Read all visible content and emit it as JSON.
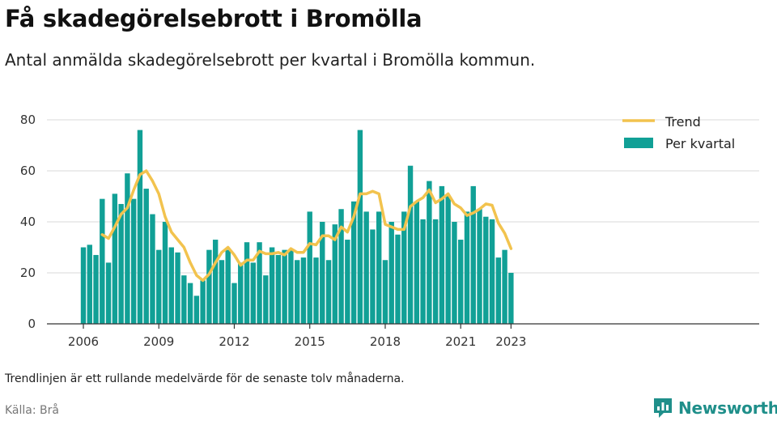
{
  "header": {
    "title": "Få skadegörelsebrott i Bromölla",
    "subtitle": "Antal anmälda skadegörelsebrott per kvartal i Bromölla kommun."
  },
  "footer": {
    "note": "Trendlinjen är ett rullande medelvärde för de senaste tolv månaderna.",
    "source": "Källa: Brå",
    "brand": "Newsworthy"
  },
  "colors": {
    "bar": "#11a096",
    "trend": "#f2c34e",
    "grid": "#d9d9d9",
    "brand": "#1f8f8a"
  },
  "chart_data": {
    "type": "bar",
    "title": "",
    "xlabel": "",
    "ylabel": "",
    "ylim": [
      0,
      80
    ],
    "yticks": [
      0,
      20,
      40,
      60,
      80
    ],
    "xticks": [
      "2006",
      "2009",
      "2012",
      "2015",
      "2018",
      "2021",
      "2023"
    ],
    "grid": true,
    "legend_position": "top-right",
    "legend": [
      "Trend",
      "Per kvartal"
    ],
    "categories": [
      "2006 K1",
      "2006 K2",
      "2006 K3",
      "2006 K4",
      "2007 K1",
      "2007 K2",
      "2007 K3",
      "2007 K4",
      "2008 K1",
      "2008 K2",
      "2008 K3",
      "2008 K4",
      "2009 K1",
      "2009 K2",
      "2009 K3",
      "2009 K4",
      "2010 K1",
      "2010 K2",
      "2010 K3",
      "2010 K4",
      "2011 K1",
      "2011 K2",
      "2011 K3",
      "2011 K4",
      "2012 K1",
      "2012 K2",
      "2012 K3",
      "2012 K4",
      "2013 K1",
      "2013 K2",
      "2013 K3",
      "2013 K4",
      "2014 K1",
      "2014 K2",
      "2014 K3",
      "2014 K4",
      "2015 K1",
      "2015 K2",
      "2015 K3",
      "2015 K4",
      "2016 K1",
      "2016 K2",
      "2016 K3",
      "2016 K4",
      "2017 K1",
      "2017 K2",
      "2017 K3",
      "2017 K4",
      "2018 K1",
      "2018 K2",
      "2018 K3",
      "2018 K4",
      "2019 K1",
      "2019 K2",
      "2019 K3",
      "2019 K4",
      "2020 K1",
      "2020 K2",
      "2020 K3",
      "2020 K4",
      "2021 K1",
      "2021 K2",
      "2021 K3",
      "2021 K4",
      "2022 K1",
      "2022 K2",
      "2022 K3",
      "2022 K4",
      "2023 K1"
    ],
    "series": [
      {
        "name": "Per kvartal",
        "type": "bar",
        "values": [
          30,
          31,
          27,
          49,
          24,
          51,
          47,
          59,
          49,
          76,
          53,
          43,
          29,
          40,
          30,
          28,
          19,
          16,
          11,
          17,
          29,
          33,
          25,
          29,
          16,
          24,
          32,
          24,
          32,
          19,
          30,
          27,
          29,
          29,
          25,
          26,
          44,
          26,
          40,
          25,
          39,
          45,
          33,
          48,
          76,
          44,
          37,
          44,
          25,
          40,
          35,
          44,
          62,
          48,
          41,
          56,
          41,
          54,
          50,
          40,
          33,
          44,
          54,
          45,
          42,
          41,
          26,
          29,
          20
        ]
      },
      {
        "name": "Trend",
        "type": "line",
        "values": [
          null,
          null,
          null,
          35,
          33.5,
          38,
          43,
          45.5,
          52.5,
          58.5,
          60,
          56,
          51,
          42,
          36,
          33,
          30,
          24,
          19,
          17,
          19.5,
          24,
          28,
          30,
          27,
          23,
          25,
          25,
          28.5,
          27.5,
          27.5,
          28,
          27,
          29.5,
          28,
          28,
          31.5,
          31,
          34.5,
          34.5,
          33,
          38,
          36,
          42,
          51,
          51,
          52,
          51,
          39,
          38,
          37,
          37,
          46,
          48,
          49.5,
          52.5,
          47.5,
          49,
          51,
          47,
          45.5,
          42.5,
          43.5,
          45,
          47,
          46.5,
          39.5,
          35.5,
          29.5
        ]
      }
    ]
  }
}
